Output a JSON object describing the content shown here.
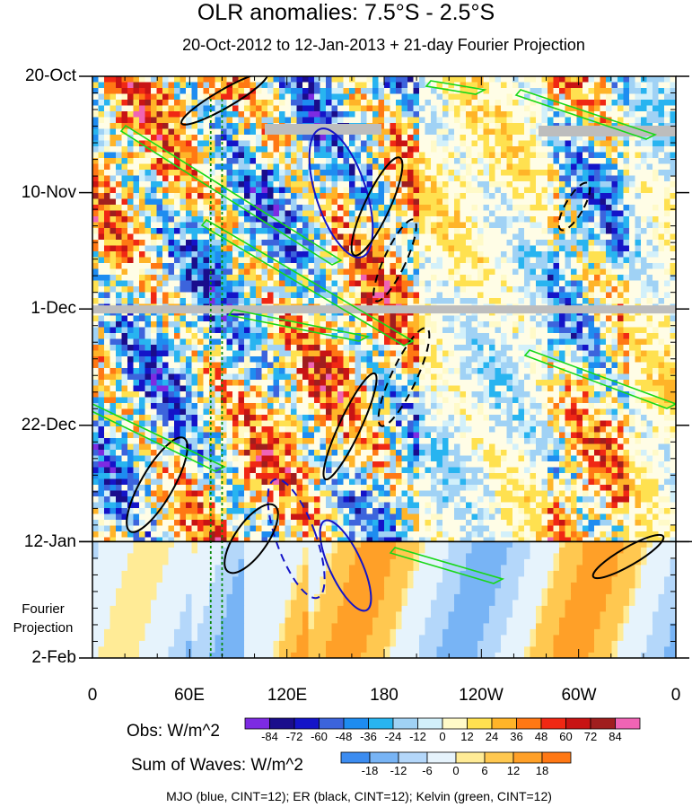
{
  "title": "OLR anomalies: 7.5°S - 2.5°S",
  "subtitle": "20-Oct-2012 to 12-Jan-2013 + 21-day Fourier Projection",
  "projection_label": [
    "Fourier",
    "Projection"
  ],
  "obs_colorbar": {
    "title": "Obs: W/m^2",
    "labels": [
      "-84",
      "-72",
      "-60",
      "-48",
      "-36",
      "-24",
      "-12",
      "0",
      "12",
      "24",
      "36",
      "48",
      "60",
      "72",
      "84"
    ],
    "colors": [
      "#7d2be2",
      "#1a0d8c",
      "#1414c8",
      "#3c64dc",
      "#1e8cf0",
      "#28b4f0",
      "#a0d2f5",
      "#d2f0fa",
      "#fffac8",
      "#ffe150",
      "#ffb428",
      "#ff7814",
      "#f02814",
      "#c81414",
      "#a01e1e",
      "#f064b4"
    ]
  },
  "sow_colorbar": {
    "title": "Sum of Waves: W/m^2",
    "labels": [
      "-18",
      "-12",
      "-6",
      "0",
      "6",
      "12",
      "18"
    ],
    "colors": [
      "#3c8cf0",
      "#78b4f5",
      "#b4d7fa",
      "#e6f3fc",
      "#ffeb96",
      "#ffc850",
      "#ffa028",
      "#ff7814"
    ]
  },
  "footer": "MJO (blue, CINT=12); ER (black, CINT=12); Kelvin (green, CINT=12)",
  "chart_data": {
    "type": "heatmap",
    "title": "OLR anomalies: 7.5°S - 2.5°S",
    "subtitle": "20-Oct-2012 to 12-Jan-2013 + 21-day Fourier Projection",
    "x_axis": {
      "ticks": [
        "0",
        "60E",
        "120E",
        "180",
        "120W",
        "60W",
        "0"
      ],
      "tick_values": [
        0,
        60,
        120,
        180,
        240,
        300,
        360
      ],
      "range": [
        0,
        360
      ]
    },
    "y_axis": {
      "ticks": [
        "20-Oct",
        "10-Nov",
        "1-Dec",
        "22-Dec",
        "12-Jan",
        "2-Feb"
      ],
      "tick_values": [
        "2012-10-20",
        "2012-11-10",
        "2012-12-01",
        "2012-12-22",
        "2013-01-12",
        "2013-02-02"
      ],
      "range": [
        "2012-10-20",
        "2013-02-02"
      ],
      "direction": "downward"
    },
    "observation_end": "2013-01-12",
    "reference_lines": [
      {
        "type": "horizontal",
        "date": "2013-01-12"
      },
      {
        "type": "vertical",
        "longitude": 73,
        "style": "dotted",
        "color": "#0a8a0a"
      },
      {
        "type": "vertical",
        "longitude": 80,
        "style": "dotted",
        "color": "#0a8a0a"
      }
    ],
    "contour_series": [
      {
        "name": "MJO",
        "color": "#1414c8",
        "cint": 12
      },
      {
        "name": "ER",
        "color": "#000000",
        "cint": 12
      },
      {
        "name": "Kelvin",
        "color": "#18d818",
        "cint": 12
      }
    ]
  }
}
